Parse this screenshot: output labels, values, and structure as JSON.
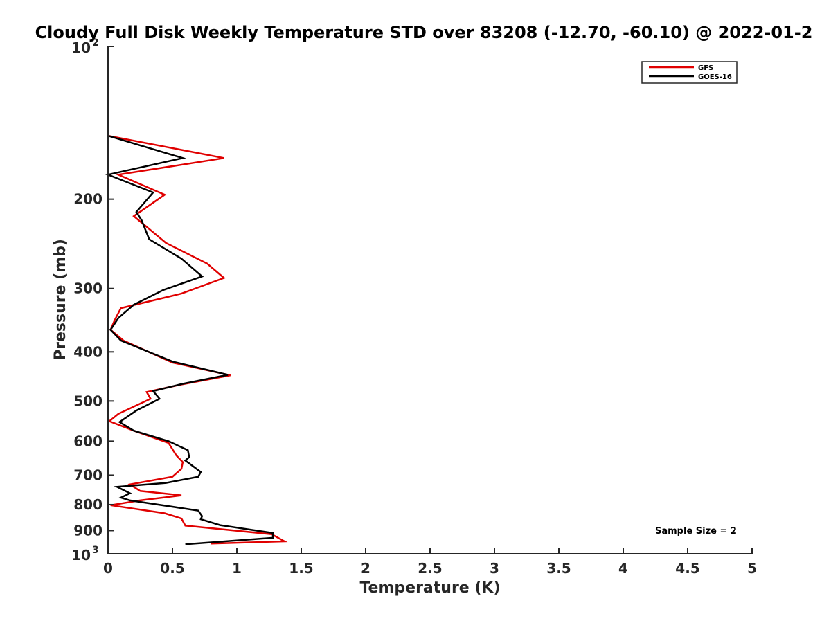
{
  "chart_data": {
    "type": "line",
    "title": "Cloudy Full Disk Weekly Temperature STD over 83208 (-12.70, -60.10) @ 2022-01-2",
    "xlabel": "Temperature (K)",
    "ylabel": "Pressure (mb)",
    "xlim": [
      0,
      5
    ],
    "ylim": [
      100,
      1000
    ],
    "yscale": "log",
    "yreversed": true,
    "x_ticks": [
      "0",
      "0.5",
      "1",
      "1.5",
      "2",
      "2.5",
      "3",
      "3.5",
      "4",
      "4.5",
      "5"
    ],
    "y_ticks": [
      {
        "value": 100,
        "base": "10",
        "exp": "2"
      },
      {
        "value": 200,
        "label": "200"
      },
      {
        "value": 300,
        "label": "300"
      },
      {
        "value": 400,
        "label": "400"
      },
      {
        "value": 500,
        "label": "500"
      },
      {
        "value": 600,
        "label": "600"
      },
      {
        "value": 700,
        "label": "700"
      },
      {
        "value": 800,
        "label": "800"
      },
      {
        "value": 900,
        "label": "900"
      },
      {
        "value": 1000,
        "base": "10",
        "exp": "3"
      }
    ],
    "grid": false,
    "legend": {
      "placement": "top-right"
    },
    "annotation": "Sample Size = 2",
    "series": [
      {
        "name": "GFS",
        "color": "#e00000",
        "points": [
          [
            0,
            100
          ],
          [
            0,
            150
          ],
          [
            0.9,
            166
          ],
          [
            0.08,
            179
          ],
          [
            0.44,
            196
          ],
          [
            0.2,
            216
          ],
          [
            0.45,
            244
          ],
          [
            0.77,
            268
          ],
          [
            0.9,
            286
          ],
          [
            0.57,
            307
          ],
          [
            0.1,
            328
          ],
          [
            0.05,
            347
          ],
          [
            0.02,
            362
          ],
          [
            0.12,
            380
          ],
          [
            0.5,
            420
          ],
          [
            0.95,
            445
          ],
          [
            0.55,
            465
          ],
          [
            0.3,
            480
          ],
          [
            0.33,
            495
          ],
          [
            0.08,
            530
          ],
          [
            0.01,
            548
          ],
          [
            0.2,
            572
          ],
          [
            0.47,
            605
          ],
          [
            0.53,
            640
          ],
          [
            0.58,
            660
          ],
          [
            0.57,
            680
          ],
          [
            0.5,
            705
          ],
          [
            0.17,
            730
          ],
          [
            0.25,
            752
          ],
          [
            0.57,
            767
          ],
          [
            0.25,
            785
          ],
          [
            0.02,
            802
          ],
          [
            0.44,
            832
          ],
          [
            0.57,
            852
          ],
          [
            0.6,
            880
          ],
          [
            1.27,
            915
          ],
          [
            1.37,
            945
          ],
          [
            0.8,
            955
          ]
        ]
      },
      {
        "name": "GOES-16",
        "color": "#000000",
        "points": [
          [
            0,
            100
          ],
          [
            0,
            150
          ],
          [
            0.58,
            166
          ],
          [
            0,
            179
          ],
          [
            0.35,
            194
          ],
          [
            0.22,
            212
          ],
          [
            0.26,
            220
          ],
          [
            0.32,
            240
          ],
          [
            0.57,
            262
          ],
          [
            0.73,
            284
          ],
          [
            0.43,
            302
          ],
          [
            0.2,
            323
          ],
          [
            0.08,
            343
          ],
          [
            0.02,
            362
          ],
          [
            0.1,
            380
          ],
          [
            0.5,
            418
          ],
          [
            0.93,
            444
          ],
          [
            0.57,
            463
          ],
          [
            0.35,
            478
          ],
          [
            0.4,
            495
          ],
          [
            0.22,
            522
          ],
          [
            0.09,
            550
          ],
          [
            0.2,
            572
          ],
          [
            0.47,
            600
          ],
          [
            0.62,
            625
          ],
          [
            0.63,
            645
          ],
          [
            0.6,
            655
          ],
          [
            0.72,
            690
          ],
          [
            0.7,
            705
          ],
          [
            0.45,
            725
          ],
          [
            0.07,
            738
          ],
          [
            0.17,
            760
          ],
          [
            0.1,
            775
          ],
          [
            0.17,
            785
          ],
          [
            0.7,
            822
          ],
          [
            0.73,
            843
          ],
          [
            0.72,
            855
          ],
          [
            0.87,
            878
          ],
          [
            1.28,
            910
          ],
          [
            1.28,
            930
          ],
          [
            0.6,
            958
          ]
        ]
      }
    ]
  }
}
